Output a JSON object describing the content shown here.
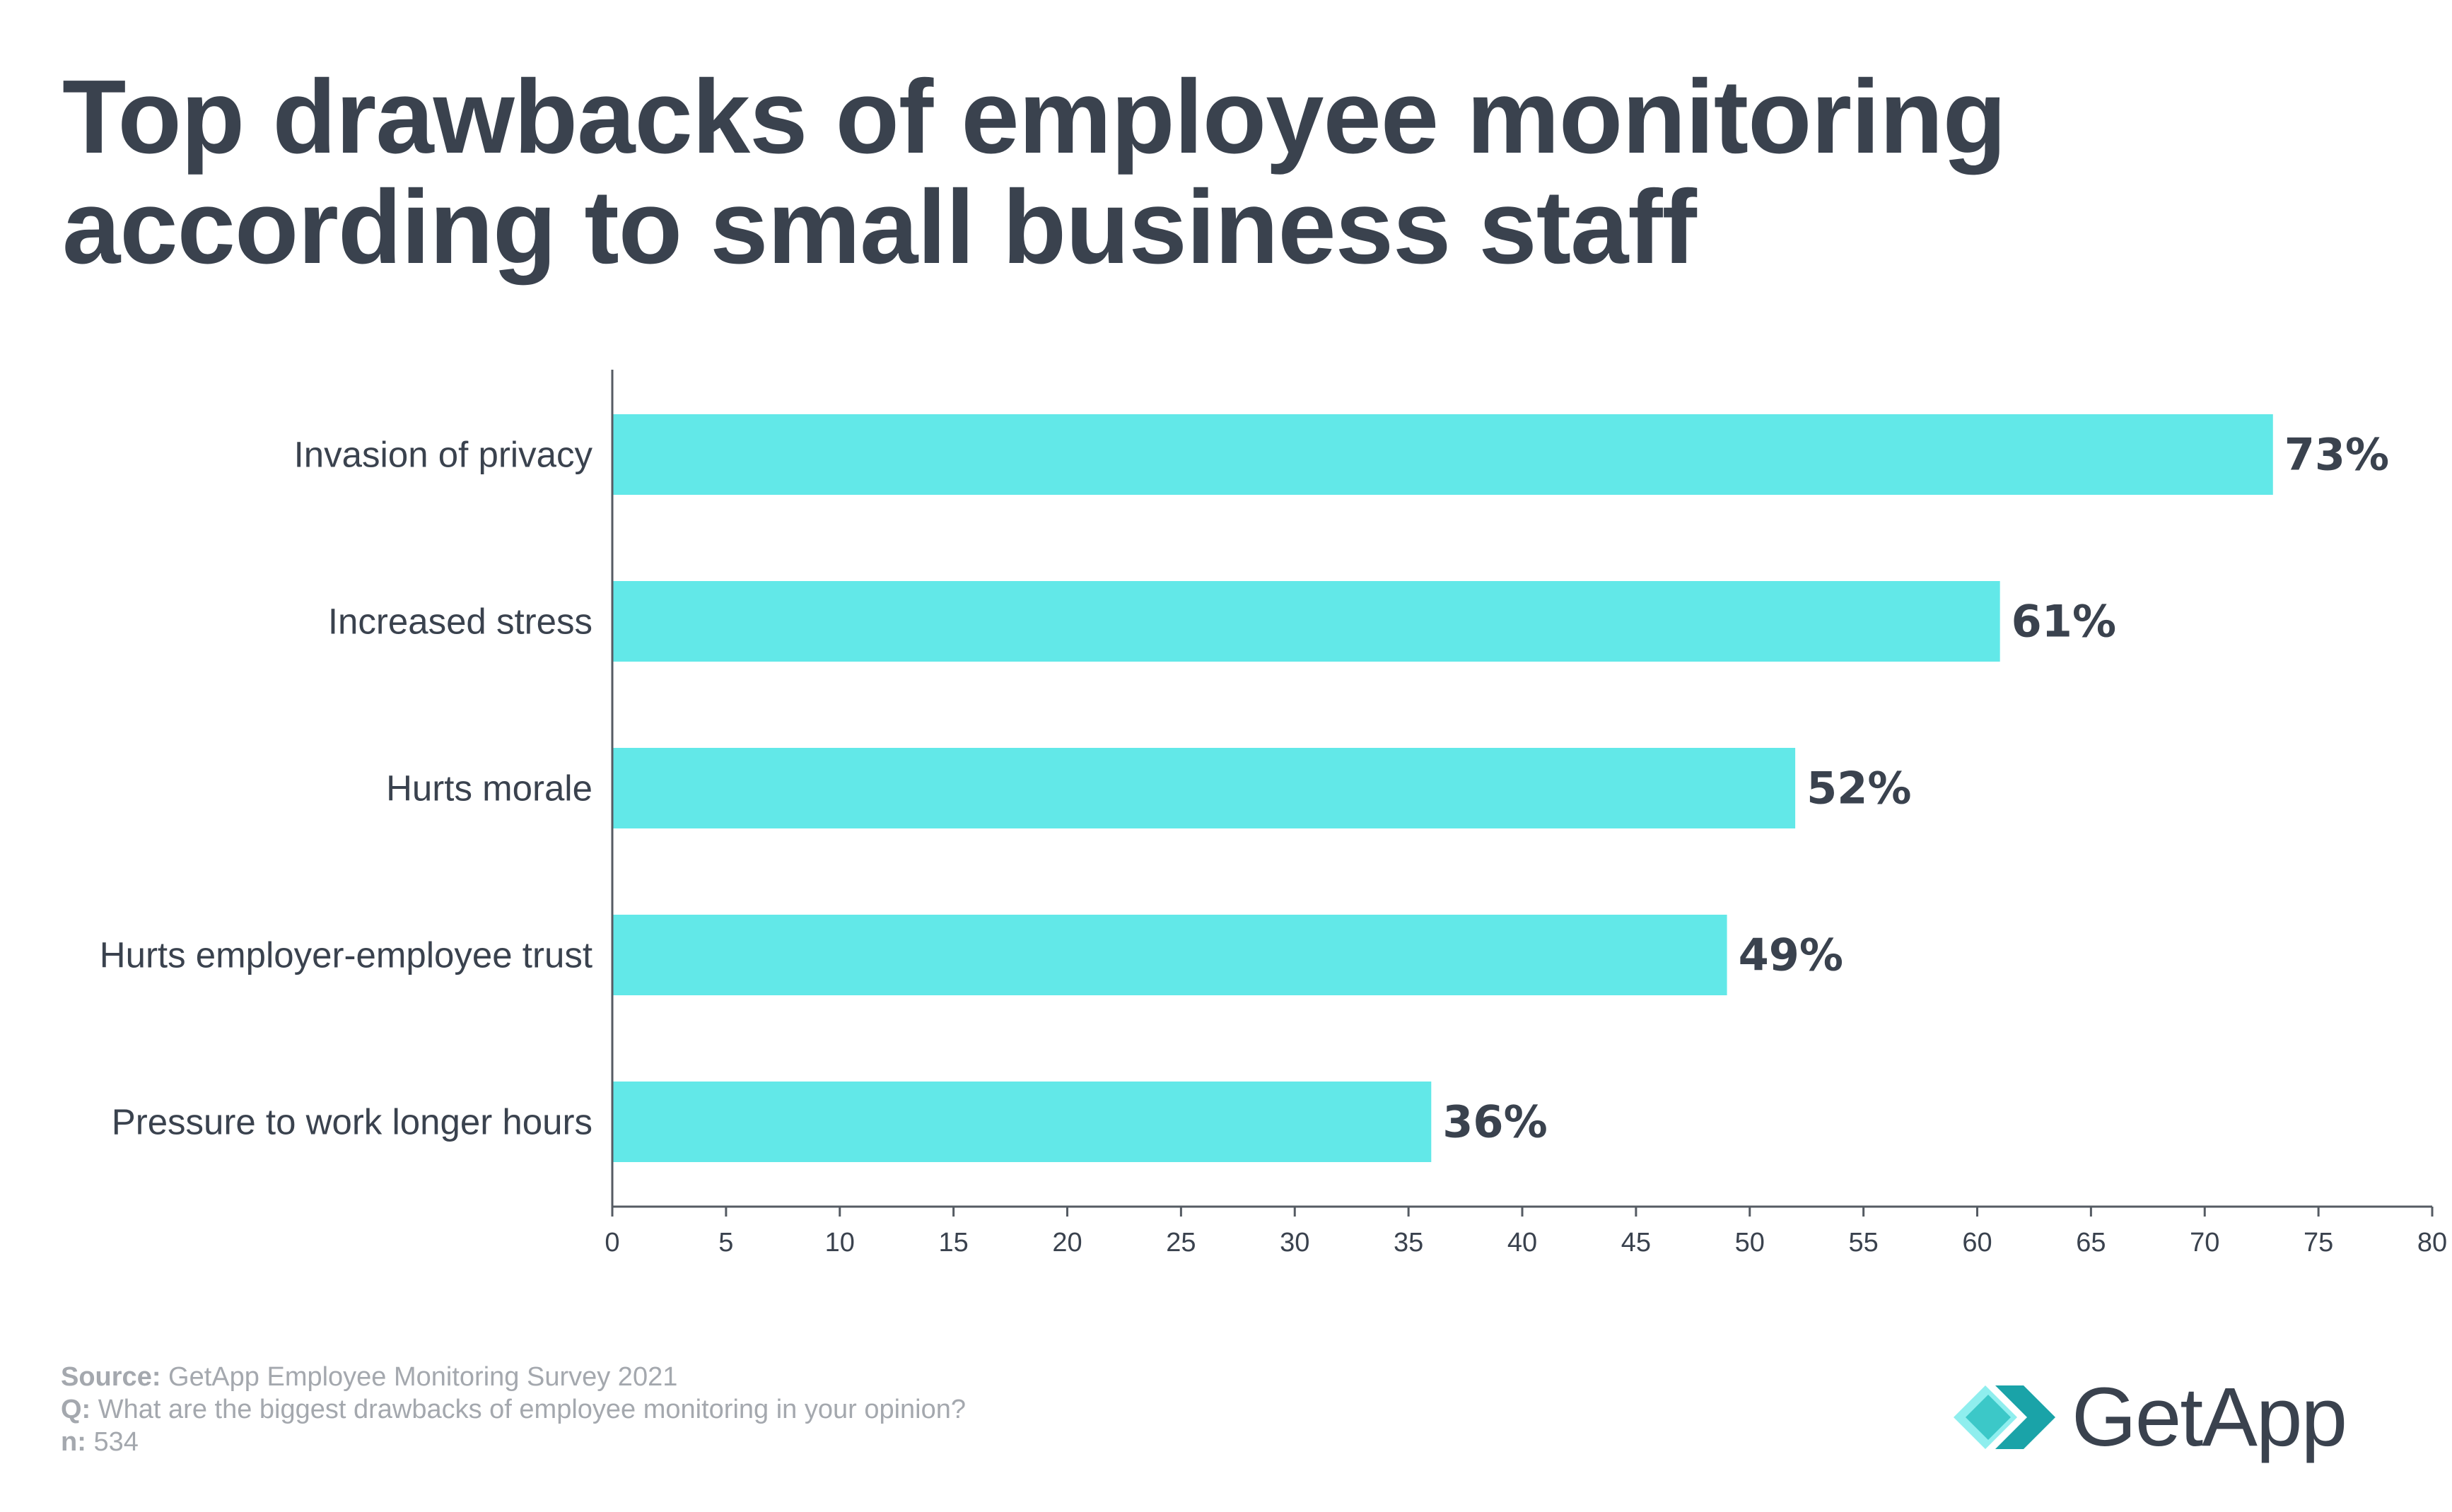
{
  "header": {
    "title_line1": "Top drawbacks of employee monitoring",
    "title_line2": "according to small business staff"
  },
  "chart_data": {
    "type": "bar",
    "orientation": "horizontal",
    "title": "Top drawbacks of employee monitoring according to small business staff",
    "categories": [
      "Invasion of privacy",
      "Increased stress",
      "Hurts morale",
      "Hurts employer-employee trust",
      "Pressure to work longer hours"
    ],
    "values": [
      73,
      61,
      52,
      49,
      36
    ],
    "value_labels": [
      "73%",
      "61%",
      "52%",
      "49%",
      "36%"
    ],
    "xlim": [
      0,
      80
    ],
    "xticks": [
      0,
      5,
      10,
      15,
      20,
      25,
      30,
      35,
      40,
      45,
      50,
      55,
      60,
      65,
      70,
      75,
      80
    ],
    "xlabel": "",
    "ylabel": "",
    "grid": false,
    "bar_color": "#62e8e8"
  },
  "footer": {
    "source_label": "Source:",
    "source_text": "GetApp Employee Monitoring Survey 2021",
    "q_label": "Q:",
    "q_text": "What are the biggest drawbacks of employee monitoring in your opinion?",
    "n_label": "n:",
    "n_text": "534"
  },
  "logo": {
    "text": "GetApp",
    "icon": "getapp-chevron-icon"
  },
  "colors": {
    "text": "#3a424e",
    "muted": "#a4a8ae",
    "bar": "#62e8e8",
    "logo_dark": "#1aa3a8",
    "logo_mid": "#3cc8c8",
    "logo_light": "#8feeee"
  }
}
